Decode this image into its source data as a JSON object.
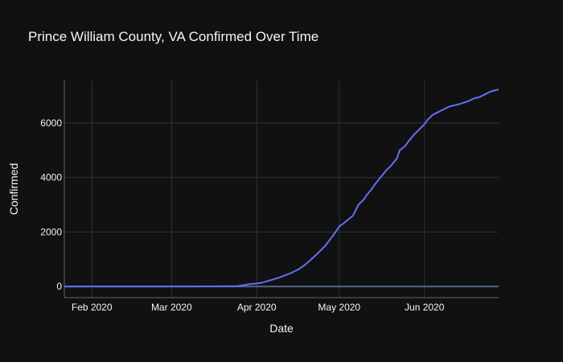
{
  "chart_data": {
    "type": "line",
    "title": "Prince William County, VA Confirmed Over Time",
    "xlabel": "Date",
    "ylabel": "Confirmed",
    "xlim": [
      "2020-01-22",
      "2020-06-28"
    ],
    "ylim": [
      -410,
      7560
    ],
    "x_ticks": [
      {
        "date": "2020-02-01",
        "label": "Feb 2020"
      },
      {
        "date": "2020-03-01",
        "label": "Mar 2020"
      },
      {
        "date": "2020-04-01",
        "label": "Apr 2020"
      },
      {
        "date": "2020-05-01",
        "label": "May 2020"
      },
      {
        "date": "2020-06-01",
        "label": "Jun 2020"
      }
    ],
    "y_ticks": [
      {
        "value": 0,
        "label": "0"
      },
      {
        "value": 2000,
        "label": "2000"
      },
      {
        "value": 4000,
        "label": "4000"
      },
      {
        "value": 6000,
        "label": "6000"
      }
    ],
    "grid": true,
    "series": [
      {
        "color": "#636efa",
        "x": [
          "2020-01-22",
          "2020-02-15",
          "2020-03-01",
          "2020-03-15",
          "2020-03-20",
          "2020-03-25",
          "2020-03-29",
          "2020-04-01",
          "2020-04-03",
          "2020-04-06",
          "2020-04-09",
          "2020-04-11",
          "2020-04-12",
          "2020-04-14",
          "2020-04-16",
          "2020-04-18",
          "2020-04-20",
          "2020-04-23",
          "2020-04-26",
          "2020-04-29",
          "2020-05-01",
          "2020-05-03",
          "2020-05-06",
          "2020-05-08",
          "2020-05-10",
          "2020-05-11",
          "2020-05-13",
          "2020-05-14",
          "2020-05-16",
          "2020-05-18",
          "2020-05-20",
          "2020-05-22",
          "2020-05-23",
          "2020-05-25",
          "2020-05-26",
          "2020-05-28",
          "2020-05-30",
          "2020-06-01",
          "2020-06-02",
          "2020-06-04",
          "2020-06-06",
          "2020-06-08",
          "2020-06-10",
          "2020-06-12",
          "2020-06-14",
          "2020-06-17",
          "2020-06-19",
          "2020-06-21",
          "2020-06-23",
          "2020-06-25",
          "2020-06-28"
        ],
        "y": [
          0,
          0,
          0,
          2,
          5,
          15,
          80,
          110,
          140,
          230,
          320,
          400,
          430,
          520,
          620,
          750,
          920,
          1200,
          1500,
          1900,
          2200,
          2350,
          2600,
          3000,
          3200,
          3350,
          3600,
          3750,
          4000,
          4250,
          4450,
          4700,
          5000,
          5150,
          5300,
          5550,
          5750,
          5950,
          6100,
          6300,
          6400,
          6500,
          6600,
          6650,
          6700,
          6800,
          6900,
          6950,
          7050,
          7150,
          7230
        ]
      }
    ]
  }
}
